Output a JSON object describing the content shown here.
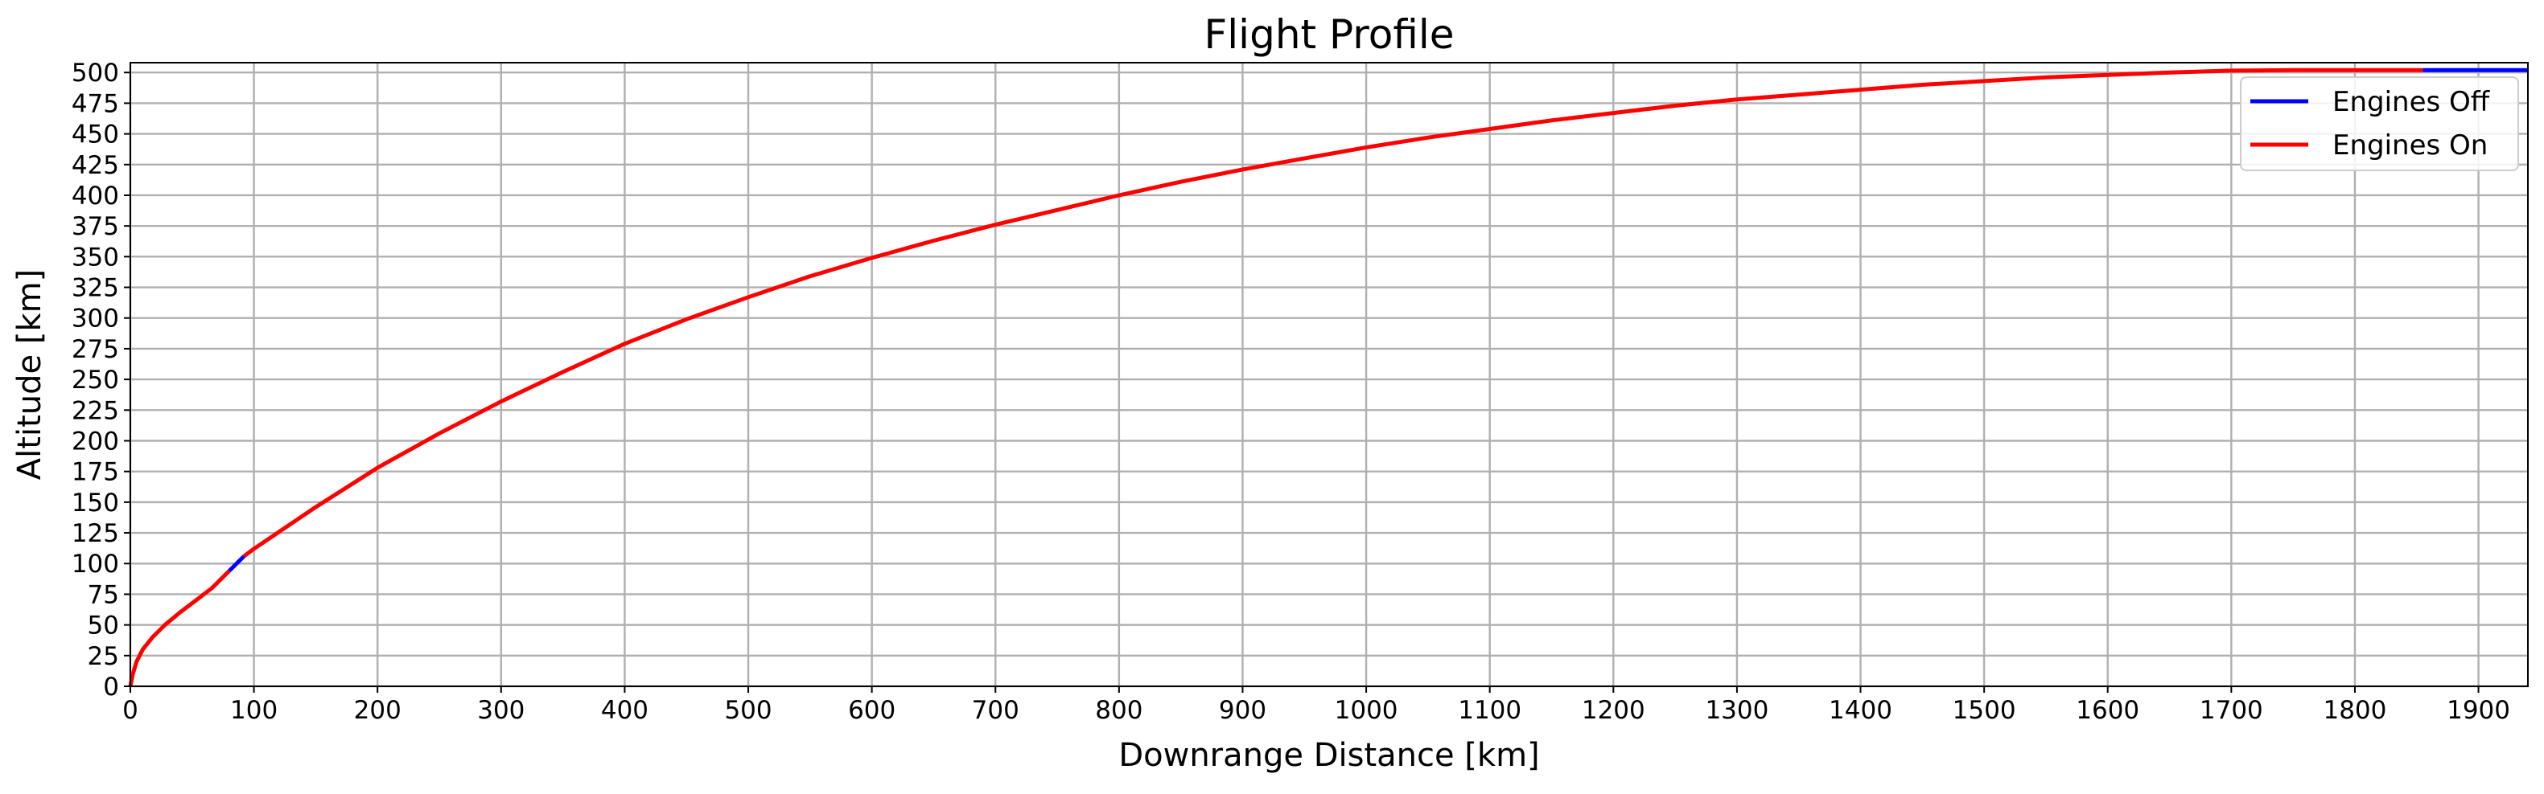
{
  "chart_data": {
    "type": "line",
    "title": "Flight Profile",
    "xlabel": "Downrange Distance [km]",
    "ylabel": "Altitude [km]",
    "xlim": [
      0,
      1940
    ],
    "ylim": [
      0,
      508
    ],
    "xticks": [
      0,
      100,
      200,
      300,
      400,
      500,
      600,
      700,
      800,
      900,
      1000,
      1100,
      1200,
      1300,
      1400,
      1500,
      1600,
      1700,
      1800,
      1900
    ],
    "yticks": [
      0,
      25,
      50,
      75,
      100,
      125,
      150,
      175,
      200,
      225,
      250,
      275,
      300,
      325,
      350,
      375,
      400,
      425,
      450,
      475,
      500
    ],
    "grid": true,
    "legend_position": "top-right",
    "series": [
      {
        "name": "Engines Off",
        "color": "#0000ff",
        "segments": [
          [
            [
              80,
              94
            ],
            [
              92,
              106
            ]
          ],
          [
            [
              1855,
              502
            ],
            [
              1940,
              502
            ]
          ]
        ]
      },
      {
        "name": "Engines On",
        "color": "#ff0000",
        "segments": [
          [
            [
              0,
              0
            ],
            [
              2,
              10
            ],
            [
              5,
              20
            ],
            [
              10,
              30
            ],
            [
              18,
              40
            ],
            [
              28,
              50
            ],
            [
              40,
              60
            ],
            [
              53,
              70
            ],
            [
              66,
              80
            ],
            [
              80,
              94
            ]
          ],
          [
            [
              92,
              106
            ],
            [
              100,
              112
            ],
            [
              150,
              146
            ],
            [
              200,
              178
            ],
            [
              250,
              206
            ],
            [
              300,
              232
            ],
            [
              350,
              256
            ],
            [
              400,
              279
            ],
            [
              450,
              299
            ],
            [
              500,
              317
            ],
            [
              550,
              334
            ],
            [
              600,
              349
            ],
            [
              650,
              363
            ],
            [
              700,
              376
            ],
            [
              750,
              388
            ],
            [
              800,
              400
            ],
            [
              850,
              411
            ],
            [
              900,
              421
            ],
            [
              950,
              430
            ],
            [
              1000,
              439
            ],
            [
              1050,
              447
            ],
            [
              1100,
              454
            ],
            [
              1150,
              461
            ],
            [
              1200,
              467
            ],
            [
              1250,
              473
            ],
            [
              1300,
              478
            ],
            [
              1350,
              482
            ],
            [
              1400,
              486
            ],
            [
              1450,
              490
            ],
            [
              1500,
              493
            ],
            [
              1550,
              496
            ],
            [
              1600,
              498
            ],
            [
              1650,
              500
            ],
            [
              1700,
              501.5
            ],
            [
              1750,
              502
            ],
            [
              1855,
              502
            ]
          ]
        ]
      }
    ]
  }
}
